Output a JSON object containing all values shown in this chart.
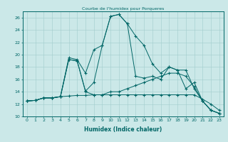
{
  "title": "Courbe de l'humidex pour Porqueres",
  "xlabel": "Humidex (Indice chaleur)",
  "xlim": [
    -0.5,
    23.5
  ],
  "ylim": [
    10,
    27
  ],
  "yticks": [
    10,
    12,
    14,
    16,
    18,
    20,
    22,
    24,
    26
  ],
  "xticks": [
    0,
    1,
    2,
    3,
    4,
    5,
    6,
    7,
    8,
    9,
    10,
    11,
    12,
    13,
    14,
    15,
    16,
    17,
    18,
    19,
    20,
    21,
    22,
    23
  ],
  "bg_color": "#cbe8e8",
  "line_color": "#006666",
  "grid_color": "#a0cccc",
  "series": [
    [
      12.5,
      12.6,
      13.0,
      13.0,
      13.2,
      13.3,
      13.4,
      13.4,
      13.5,
      13.5,
      13.5,
      13.5,
      13.5,
      13.5,
      13.5,
      13.5,
      13.5,
      13.5,
      13.5,
      13.5,
      13.5,
      12.8,
      12.0,
      11.0
    ],
    [
      12.5,
      12.6,
      13.0,
      13.0,
      13.2,
      19.2,
      19.0,
      14.1,
      15.5,
      21.5,
      26.2,
      26.5,
      25.0,
      23.0,
      21.5,
      18.5,
      17.0,
      18.0,
      17.5,
      17.5,
      14.5,
      12.5,
      11.0,
      10.5
    ],
    [
      12.5,
      12.6,
      13.0,
      13.0,
      13.2,
      19.5,
      19.2,
      17.0,
      20.8,
      21.5,
      26.2,
      26.5,
      25.0,
      16.5,
      16.2,
      16.5,
      16.0,
      18.0,
      17.5,
      14.5,
      15.5,
      12.5,
      11.0,
      10.5
    ],
    [
      12.5,
      12.6,
      13.0,
      13.0,
      13.2,
      19.2,
      19.0,
      14.0,
      13.5,
      13.5,
      14.0,
      14.0,
      14.5,
      15.0,
      15.5,
      16.0,
      16.5,
      17.0,
      17.0,
      16.5,
      14.8,
      12.5,
      11.0,
      10.5
    ]
  ]
}
